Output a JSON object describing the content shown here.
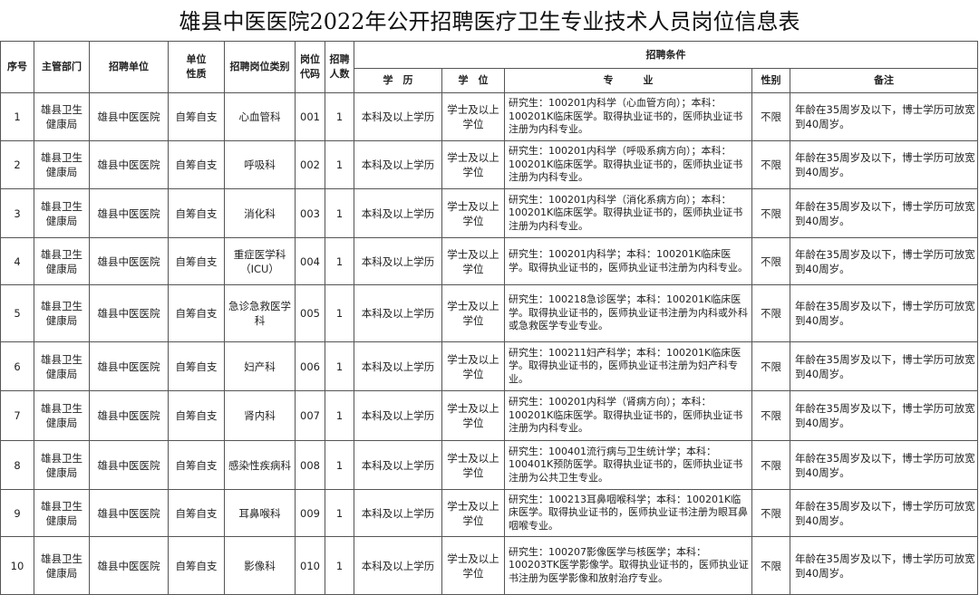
{
  "title": "雄县中医医院2022年公开招聘医疗卫生专业技术人员岗位信息表",
  "headers": {
    "seq": "序号",
    "dept": "主管部门",
    "unit": "招聘单位",
    "nature": "单位\n性质",
    "category": "招聘岗位类别",
    "code": "岗位\n代码",
    "count": "招聘\n人数",
    "conditions": "招聘条件",
    "edu": "学　历",
    "degree": "学　位",
    "major": "专　　　业",
    "gender": "性别",
    "remark": "备注"
  },
  "rows": [
    {
      "seq": "1",
      "dept": "雄县卫生健康局",
      "unit": "雄县中医医院",
      "nature": "自筹自支",
      "category": "心血管科",
      "code": "001",
      "count": "1",
      "edu": "本科及以上学历",
      "degree": "学士及以上学位",
      "major": "研究生：100201内科学（心血管方向）；本科：100201K临床医学。取得执业证书的，医师执业证书注册为内科专业。",
      "gender": "不限",
      "remark": "年龄在35周岁及以下，博士学历可放宽到40周岁。"
    },
    {
      "seq": "2",
      "dept": "雄县卫生健康局",
      "unit": "雄县中医医院",
      "nature": "自筹自支",
      "category": "呼吸科",
      "code": "002",
      "count": "1",
      "edu": "本科及以上学历",
      "degree": "学士及以上学位",
      "major": "研究生：100201内科学（呼吸系病方向）；本科：100201K临床医学。取得执业证书的，医师执业证书注册为内科专业。",
      "gender": "不限",
      "remark": "年龄在35周岁及以下，博士学历可放宽到40周岁。"
    },
    {
      "seq": "3",
      "dept": "雄县卫生健康局",
      "unit": "雄县中医医院",
      "nature": "自筹自支",
      "category": "消化科",
      "code": "003",
      "count": "1",
      "edu": "本科及以上学历",
      "degree": "学士及以上学位",
      "major": "研究生：100201内科学（消化系病方向）；本科：100201K临床医学。取得执业证书的，医师执业证书注册为内科专业。",
      "gender": "不限",
      "remark": "年龄在35周岁及以下，博士学历可放宽到40周岁。"
    },
    {
      "seq": "4",
      "dept": "雄县卫生健康局",
      "unit": "雄县中医医院",
      "nature": "自筹自支",
      "category": "重症医学科（ICU）",
      "code": "004",
      "count": "1",
      "edu": "本科及以上学历",
      "degree": "学士及以上学位",
      "major": "研究生：100201内科学；本科：100201K临床医学。取得执业证书的，医师执业证书注册为内科专业。",
      "gender": "不限",
      "remark": "年龄在35周岁及以下，博士学历可放宽到40周岁。"
    },
    {
      "seq": "5",
      "dept": "雄县卫生健康局",
      "unit": "雄县中医医院",
      "nature": "自筹自支",
      "category": "急诊急救医学科",
      "code": "005",
      "count": "1",
      "edu": "本科及以上学历",
      "degree": "学士及以上学位",
      "major": "研究生：100218急诊医学；本科：100201K临床医学。取得执业证书的，医师执业证书注册为内科或外科或急救医学专业专业。",
      "gender": "不限",
      "remark": "年龄在35周岁及以下，博士学历可放宽到40周岁。"
    },
    {
      "seq": "6",
      "dept": "雄县卫生健康局",
      "unit": "雄县中医医院",
      "nature": "自筹自支",
      "category": "妇产科",
      "code": "006",
      "count": "1",
      "edu": "本科及以上学历",
      "degree": "学士及以上学位",
      "major": "研究生：100211妇产科学；本科：100201K临床医学。取得执业证书的，医师执业证书注册为妇产科专业。",
      "gender": "不限",
      "remark": "年龄在35周岁及以下，博士学历可放宽到40周岁。"
    },
    {
      "seq": "7",
      "dept": "雄县卫生健康局",
      "unit": "雄县中医医院",
      "nature": "自筹自支",
      "category": "肾内科",
      "code": "007",
      "count": "1",
      "edu": "本科及以上学历",
      "degree": "学士及以上学位",
      "major": "研究生：100201内科学（肾病方向）；本科：100201K临床医学。取得执业证书的，医师执业证书注册为内科专业。",
      "gender": "不限",
      "remark": "年龄在35周岁及以下，博士学历可放宽到40周岁。"
    },
    {
      "seq": "8",
      "dept": "雄县卫生健康局",
      "unit": "雄县中医医院",
      "nature": "自筹自支",
      "category": "感染性疾病科",
      "code": "008",
      "count": "1",
      "edu": "本科及以上学历",
      "degree": "学士及以上学位",
      "major": "研究生：100401流行病与卫生统计学；本科：100401K预防医学。取得执业证书的，医师执业证书注册为公共卫生专业。",
      "gender": "不限",
      "remark": "年龄在35周岁及以下，博士学历可放宽到40周岁。"
    },
    {
      "seq": "9",
      "dept": "雄县卫生健康局",
      "unit": "雄县中医医院",
      "nature": "自筹自支",
      "category": "耳鼻喉科",
      "code": "009",
      "count": "1",
      "edu": "本科及以上学历",
      "degree": "学士及以上学位",
      "major": "研究生：100213耳鼻咽喉科学；本科：100201K临床医学。取得执业证书的，医师执业证书注册为眼耳鼻咽喉专业。",
      "gender": "不限",
      "remark": "年龄在35周岁及以下，博士学历可放宽到40周岁。"
    },
    {
      "seq": "10",
      "dept": "雄县卫生健康局",
      "unit": "雄县中医医院",
      "nature": "自筹自支",
      "category": "影像科",
      "code": "010",
      "count": "1",
      "edu": "本科及以上学历",
      "degree": "学士及以上学位",
      "major": "研究生：100207影像医学与核医学；本科：100203TK医学影像学。取得执业证书的，医师执业证书注册为医学影像和放射治疗专业。",
      "gender": "不限",
      "remark": "年龄在35周岁及以下，博士学历可放宽到40周岁。"
    }
  ]
}
